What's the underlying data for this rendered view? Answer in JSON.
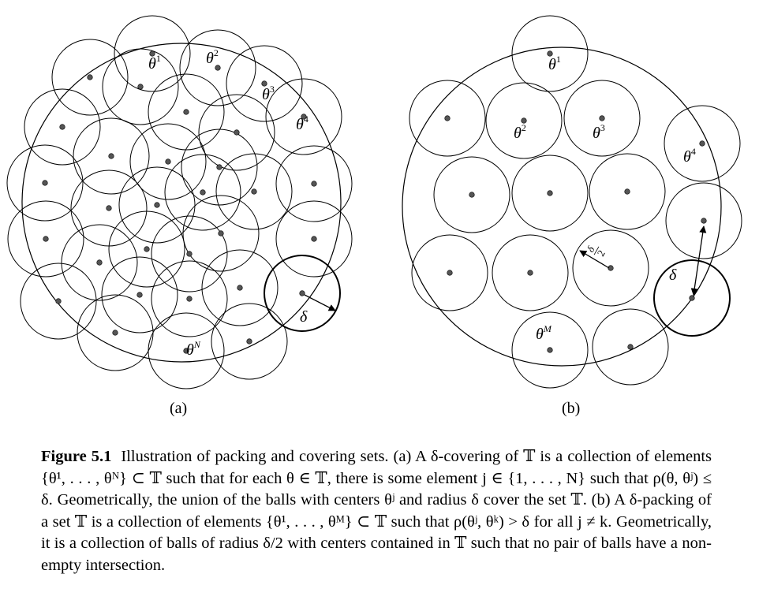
{
  "figure": {
    "panel_a_label": "(a)",
    "panel_b_label": "(b)",
    "a_labels": {
      "t1": "θ",
      "t1_sup": "1",
      "t2": "θ",
      "t2_sup": "2",
      "t3": "θ",
      "t3_sup": "3",
      "t4": "θ",
      "t4_sup": "4",
      "tN": "θ",
      "tN_sup": "N",
      "delta": "δ"
    },
    "b_labels": {
      "t1": "θ",
      "t1_sup": "1",
      "t2": "θ",
      "t2_sup": "2",
      "t3": "θ",
      "t3_sup": "3",
      "t4": "θ",
      "t4_sup": "4",
      "tM": "θ",
      "tM_sup": "M",
      "delta": "δ",
      "half_num": "δ",
      "half_den": "2"
    }
  },
  "caption": {
    "title": "Figure 5.1",
    "text": "Illustration of packing and covering sets. (a) A δ-covering of 𝕋 is a collection of elements {θ¹, . . . , θᴺ} ⊂ 𝕋 such that for each θ ∈ 𝕋, there is some element j ∈ {1, . . . , N} such that ρ(θ, θʲ) ≤ δ. Geometrically, the union of the balls with centers θʲ and radius δ cover the set 𝕋. (b) A δ-packing of a set 𝕋 is a collection of elements {θ¹, . . . , θᴹ} ⊂ 𝕋 such that ρ(θʲ, θᵏ) > δ for all j ≠ k. Geometrically, it is a collection of balls of radius δ/2 with centers contained in 𝕋 such that no pair of balls have a non-empty intersection."
  }
}
